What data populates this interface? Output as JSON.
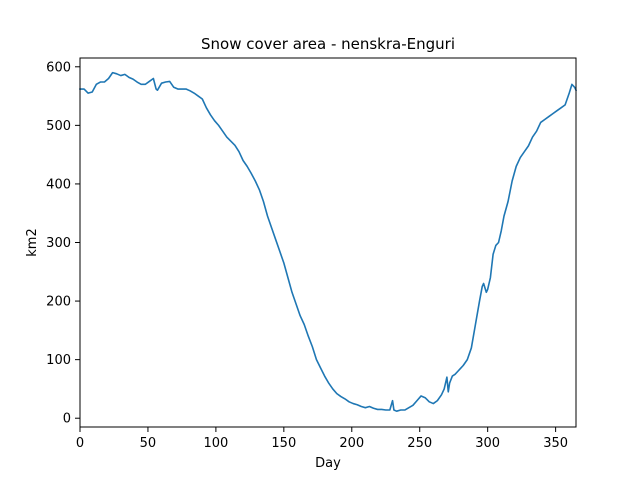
{
  "chart_data": {
    "type": "line",
    "title": "Snow cover area - nenskra-Enguri",
    "xlabel": "Day",
    "ylabel": "km2",
    "xlim": [
      0,
      365
    ],
    "ylim": [
      -15,
      615
    ],
    "xticks": [
      0,
      50,
      100,
      150,
      200,
      250,
      300,
      350
    ],
    "yticks": [
      0,
      100,
      200,
      300,
      400,
      500,
      600
    ],
    "grid": false,
    "series": [
      {
        "color": "#1f77b4",
        "x": [
          0,
          3,
          6,
          9,
          12,
          15,
          18,
          21,
          24,
          27,
          30,
          33,
          36,
          39,
          42,
          45,
          48,
          51,
          54,
          56,
          57,
          60,
          63,
          66,
          69,
          72,
          75,
          78,
          81,
          84,
          87,
          90,
          93,
          96,
          99,
          102,
          105,
          108,
          111,
          114,
          117,
          120,
          123,
          126,
          129,
          132,
          135,
          138,
          141,
          144,
          147,
          150,
          153,
          156,
          159,
          162,
          165,
          168,
          171,
          174,
          177,
          180,
          183,
          186,
          189,
          192,
          195,
          198,
          201,
          204,
          207,
          210,
          213,
          216,
          219,
          222,
          225,
          228,
          230,
          231,
          233,
          236,
          239,
          242,
          245,
          248,
          251,
          254,
          257,
          260,
          263,
          266,
          268,
          270,
          271,
          272,
          274,
          276,
          278,
          280,
          282,
          285,
          288,
          291,
          294,
          296,
          297,
          299,
          300,
          302,
          304,
          306,
          308,
          310,
          312,
          315,
          318,
          321,
          324,
          327,
          330,
          333,
          336,
          339,
          342,
          345,
          348,
          351,
          354,
          357,
          360,
          362,
          364,
          365
        ],
        "y": [
          562,
          562,
          555,
          557,
          570,
          574,
          574,
          580,
          590,
          588,
          585,
          587,
          582,
          579,
          574,
          570,
          570,
          575,
          580,
          562,
          560,
          572,
          574,
          575,
          565,
          562,
          562,
          562,
          559,
          555,
          550,
          545,
          530,
          518,
          508,
          500,
          490,
          480,
          473,
          466,
          455,
          440,
          430,
          418,
          405,
          390,
          370,
          345,
          325,
          305,
          285,
          265,
          240,
          215,
          195,
          175,
          160,
          140,
          122,
          100,
          86,
          72,
          60,
          50,
          42,
          37,
          33,
          28,
          25,
          23,
          20,
          18,
          20,
          17,
          15,
          15,
          14,
          14,
          30,
          14,
          12,
          14,
          14,
          18,
          22,
          30,
          38,
          35,
          28,
          25,
          30,
          40,
          50,
          70,
          45,
          60,
          72,
          75,
          80,
          85,
          90,
          100,
          120,
          160,
          200,
          225,
          230,
          215,
          220,
          240,
          280,
          295,
          300,
          320,
          345,
          370,
          405,
          430,
          445,
          455,
          465,
          480,
          490,
          505,
          510,
          515,
          520,
          525,
          530,
          535,
          555,
          570,
          565,
          560
        ]
      }
    ]
  }
}
